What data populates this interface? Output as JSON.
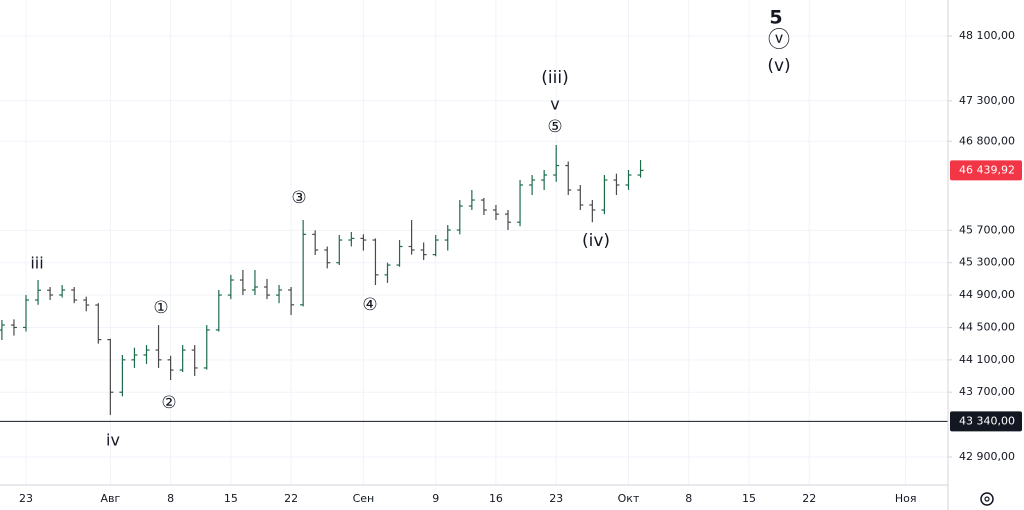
{
  "chart_data": {
    "type": "ohlc",
    "categories": [
      null,
      null,
      "23",
      null,
      null,
      null,
      null,
      null,
      null,
      "Авг",
      null,
      null,
      null,
      null,
      "8",
      null,
      null,
      null,
      null,
      "15",
      null,
      null,
      null,
      null,
      "22",
      null,
      null,
      null,
      null,
      null,
      "Сен",
      null,
      null,
      null,
      null,
      null,
      "9",
      null,
      null,
      null,
      null,
      "16",
      null,
      null,
      null,
      null,
      "23",
      null,
      null,
      null,
      null,
      null,
      "Окт",
      null,
      null,
      null,
      null,
      "8",
      null,
      null,
      null,
      null,
      "15",
      null,
      null,
      null,
      null,
      "22",
      null,
      null,
      null,
      null,
      null,
      null,
      null,
      "Ноя",
      null,
      null,
      null
    ],
    "open": [
      44468,
      44530,
      44500,
      44839,
      44960,
      44901,
      44963,
      44839,
      44777,
      44350,
      43700,
      44100,
      44160,
      44221,
      44100,
      43974,
      44221,
      44000,
      44470,
      44900,
      45086,
      44963,
      45000,
      44900,
      44963,
      44780,
      45650,
      45457,
      45300,
      45580,
      45600,
      45580,
      45150,
      45271,
      45500,
      45457,
      45400,
      45580,
      45704,
      46000,
      46074,
      45951,
      45900,
      45800,
      46260,
      46321,
      46383,
      46500,
      46198,
      46013,
      45951,
      46321,
      46260,
      46383,
      null,
      null,
      null,
      null,
      null,
      null,
      null,
      null,
      null,
      null,
      null,
      null,
      null,
      null,
      null,
      null,
      null,
      null,
      null,
      null,
      null,
      null,
      null,
      null,
      null
    ],
    "high": [
      44592,
      44600,
      44900,
      45086,
      45000,
      45024,
      45000,
      44880,
      44800,
      44360,
      44160,
      44250,
      44283,
      44530,
      44150,
      44283,
      44283,
      44530,
      44963,
      45150,
      45210,
      45210,
      45100,
      45024,
      45000,
      45827,
      45700,
      45500,
      45642,
      45679,
      45650,
      45600,
      45300,
      45580,
      45827,
      45550,
      45642,
      45765,
      46074,
      46198,
      46100,
      46013,
      45951,
      46321,
      46383,
      46445,
      46754,
      46550,
      46260,
      46074,
      46383,
      46400,
      46445,
      46568,
      null,
      null,
      null,
      null,
      null,
      null,
      null,
      null,
      null,
      null,
      null,
      null,
      null,
      null,
      null,
      null,
      null,
      null,
      null,
      null,
      null,
      null,
      null,
      null,
      null
    ],
    "low": [
      44345,
      44400,
      44450,
      44780,
      44840,
      44870,
      44800,
      44700,
      44300,
      43419,
      43650,
      44000,
      44050,
      44000,
      43851,
      43950,
      43900,
      43980,
      44450,
      44850,
      44900,
      44900,
      44850,
      44800,
      44654,
      44760,
      45395,
      45230,
      45271,
      45500,
      45450,
      45024,
      45050,
      45250,
      45400,
      45333,
      45380,
      45450,
      45650,
      45951,
      45889,
      45827,
      45704,
      45750,
      46136,
      46198,
      46300,
      46136,
      45951,
      45800,
      45900,
      46136,
      46200,
      46350,
      null,
      null,
      null,
      null,
      null,
      null,
      null,
      null,
      null,
      null,
      null,
      null,
      null,
      null,
      null,
      null,
      null,
      null,
      null,
      null,
      null,
      null,
      null,
      null,
      null
    ],
    "close": [
      44530,
      44500,
      44839,
      44960,
      44901,
      44963,
      44839,
      44777,
      44350,
      43700,
      44100,
      44160,
      44221,
      44100,
      43974,
      44221,
      44000,
      44470,
      44900,
      45086,
      44963,
      45000,
      44900,
      44963,
      44780,
      45650,
      45457,
      45300,
      45580,
      45600,
      45580,
      45150,
      45271,
      45500,
      45457,
      45400,
      45580,
      45704,
      46000,
      46074,
      45951,
      45900,
      45800,
      46260,
      46321,
      46383,
      46500,
      46198,
      46013,
      45951,
      46321,
      46260,
      46383,
      46439.92,
      null,
      null,
      null,
      null,
      null,
      null,
      null,
      null,
      null,
      null,
      null,
      null,
      null,
      null,
      null,
      null,
      null,
      null,
      null,
      null,
      null,
      null,
      null,
      null,
      null
    ],
    "last_label": "46 439,92",
    "up_color": "#1e6b4a",
    "down_color": "#4a4a4a",
    "last_color": "#f23645",
    "ylim": [
      42554,
      48545
    ],
    "yticks": [
      {
        "value": 42900,
        "label": "42 900,00"
      },
      {
        "value": 43700,
        "label": "43 700,00"
      },
      {
        "value": 44100,
        "label": "44 100,00"
      },
      {
        "value": 44500,
        "label": "44 500,00"
      },
      {
        "value": 44900,
        "label": "44 900,00"
      },
      {
        "value": 45300,
        "label": "45 300,00"
      },
      {
        "value": 45700,
        "label": "45 700,00"
      },
      {
        "value": 46800,
        "label": "46 800,00"
      },
      {
        "value": 47300,
        "label": "47 300,00"
      },
      {
        "value": 48100,
        "label": "48 100,00"
      }
    ],
    "grid": true,
    "hlines": [
      {
        "value": 43340,
        "label": "43 340,00"
      }
    ],
    "annotations": [
      "iii",
      "iv",
      "①",
      "②",
      "③",
      "④",
      "(iii)",
      "v",
      "⑤",
      "(iv)",
      "5",
      "ⓥ",
      "(v)"
    ]
  }
}
